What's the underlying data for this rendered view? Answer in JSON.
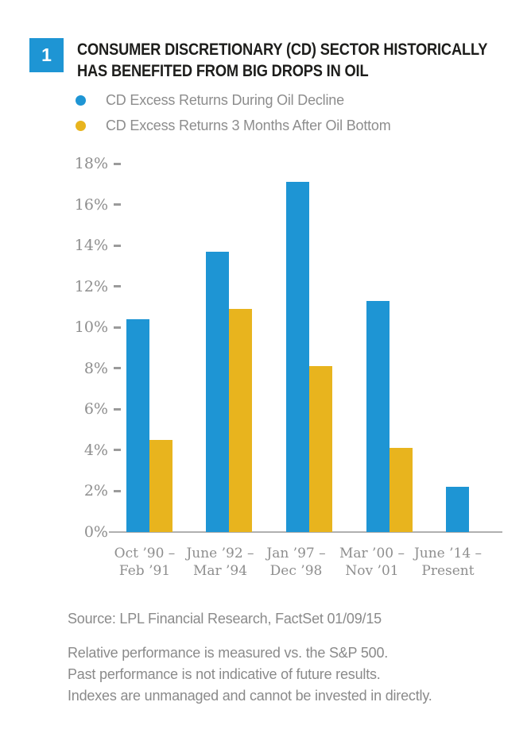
{
  "figure": {
    "number": "1",
    "title_line1": "CONSUMER DISCRETIONARY (CD) SECTOR HISTORICALLY",
    "title_line2": "HAS BENEFITED FROM BIG DROPS IN OIL"
  },
  "legend": {
    "items": [
      {
        "label": "CD Excess Returns During Oil Decline",
        "color": "#1e95d4"
      },
      {
        "label": "CD Excess Returns 3 Months After Oil Bottom",
        "color": "#e8b41e"
      }
    ]
  },
  "chart_data": {
    "type": "bar",
    "title": "CONSUMER DISCRETIONARY (CD) SECTOR HISTORICALLY HAS BENEFITED FROM BIG DROPS IN OIL",
    "categories": [
      "Oct ’90 – Feb ’91",
      "June ’92 – Mar ’94",
      "Jan ’97 – Dec ’98",
      "Mar ’00 – Nov ’01",
      "June ’14 – Present"
    ],
    "categories_lines": [
      [
        "Oct ’90 –",
        "Feb ’91"
      ],
      [
        "June ’92 –",
        "Mar ’94"
      ],
      [
        "Jan ’97 –",
        "Dec ’98"
      ],
      [
        "Mar ’00 –",
        "Nov ’01"
      ],
      [
        "June ’14 –",
        "Present"
      ]
    ],
    "series": [
      {
        "name": "CD Excess Returns During Oil Decline",
        "color": "#1e95d4",
        "values": [
          10.4,
          13.7,
          17.1,
          11.3,
          2.2
        ]
      },
      {
        "name": "CD Excess Returns 3 Months After Oil Bottom",
        "color": "#e8b41e",
        "values": [
          4.5,
          10.9,
          8.1,
          4.1,
          null
        ]
      }
    ],
    "xlabel": "",
    "ylabel": "",
    "ylim": [
      0,
      18
    ],
    "ytick_step": 2,
    "ytick_suffix": "%",
    "grid": false,
    "legend_position": "top-left"
  },
  "footer": {
    "source": "Source: LPL Financial Research, FactSet 01/09/15",
    "disclaimer_lines": [
      "Relative performance is measured vs. the S&P 500.",
      "Past performance is not indicative of future results.",
      "Indexes are unmanaged and cannot be invested in directly."
    ]
  },
  "colors": {
    "accent_blue": "#1e95d4",
    "accent_yellow": "#e8b41e",
    "axis_line": "#b0b0b0",
    "tick": "#9b9b9b",
    "axis_text": "#8e8e8e",
    "body_text": "#8a8a8a",
    "title_text": "#1d1d1b"
  }
}
